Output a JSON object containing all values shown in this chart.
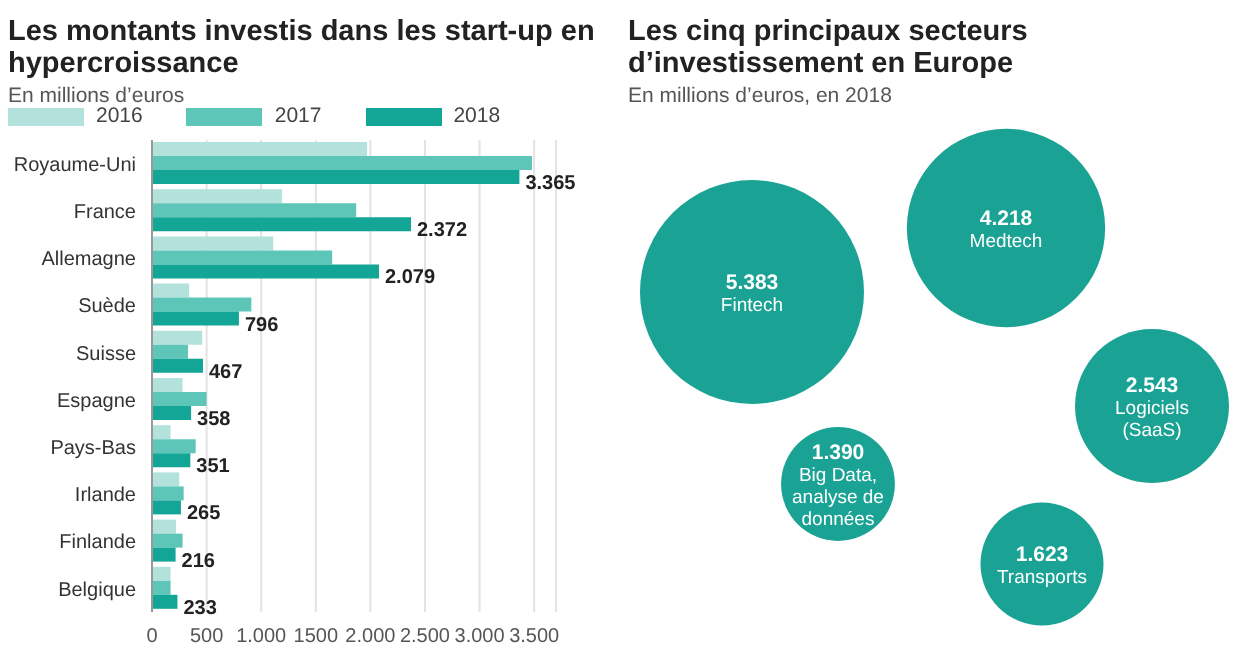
{
  "chart_data": [
    {
      "type": "bar",
      "orientation": "horizontal",
      "title": "Les montants investis dans les start-up en hypercroissance",
      "subtitle": "En millions d’euros",
      "categories": [
        "Royaume-Uni",
        "France",
        "Allemagne",
        "Suède",
        "Suisse",
        "Espagne",
        "Pays-Bas",
        "Irlande",
        "Finlande",
        "Belgique"
      ],
      "series": [
        {
          "name": "2016",
          "color": "#b3e2dc",
          "values": [
            1970,
            1190,
            1110,
            340,
            460,
            280,
            170,
            250,
            220,
            170
          ]
        },
        {
          "name": "2017",
          "color": "#5ec5b9",
          "values": [
            3480,
            1870,
            1650,
            910,
            330,
            500,
            400,
            290,
            280,
            170
          ]
        },
        {
          "name": "2018",
          "color": "#13a595",
          "values": [
            3365,
            2372,
            2079,
            796,
            467,
            358,
            351,
            265,
            216,
            233
          ],
          "value_labels": [
            "3.365",
            "2.372",
            "2.079",
            "796",
            "467",
            "358",
            "351",
            "265",
            "216",
            "233"
          ]
        }
      ],
      "xlim": [
        0,
        3700
      ],
      "xticks": [
        0,
        500,
        {
          "value": 1000,
          "label": "1.000"
        },
        {
          "value": 1500,
          "label": "1500"
        },
        {
          "value": 2000,
          "label": "2.000"
        },
        {
          "value": 2500,
          "label": "2.500"
        },
        {
          "value": 3000,
          "label": "3.000"
        },
        {
          "value": 3500,
          "label": "3.500"
        }
      ],
      "grid": "x",
      "legend": "top left"
    },
    {
      "type": "other",
      "title": "Les cinq principaux secteurs d’investissement en Europe",
      "subtitle": "En millions d’euros, en 2018",
      "categories": [
        "Fintech",
        "Medtech",
        "Logiciels (SaaS)",
        "Big Data, analyse de données",
        "Transports"
      ],
      "values": [
        5383,
        4218,
        2543,
        1390,
        1623
      ],
      "value_labels": [
        "5.383",
        "4.218",
        "2.543",
        "1.390",
        "1.623"
      ],
      "color": "#1aa394"
    }
  ]
}
